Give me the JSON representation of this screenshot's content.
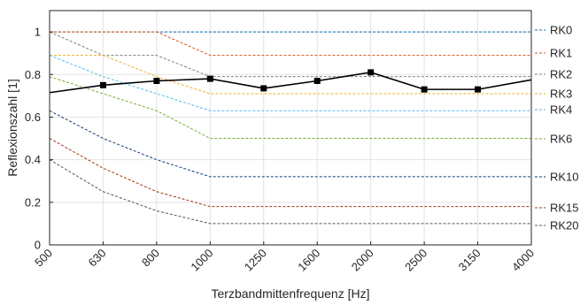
{
  "chart_data": {
    "type": "line",
    "xlabel": "Terzbandmittenfrequenz [Hz]",
    "ylabel": "Reflexionszahl [1]",
    "categories": [
      "500",
      "630",
      "800",
      "1000",
      "1250",
      "1600",
      "2000",
      "2500",
      "3150",
      "4000"
    ],
    "ylim": [
      0,
      1.1
    ],
    "yticks": [
      "0",
      "0.2",
      "0.4",
      "0.6",
      "0.8",
      "1"
    ],
    "grid": true,
    "reference_curves": [
      {
        "name": "RK0",
        "color": "#0072BD",
        "values": [
          1,
          1,
          1,
          1,
          1,
          1,
          1,
          1,
          1,
          1
        ]
      },
      {
        "name": "RK1",
        "color": "#D95319",
        "values": [
          1,
          1,
          1,
          0.89,
          0.89,
          0.89,
          0.89,
          0.89,
          0.89,
          0.89
        ]
      },
      {
        "name": "RK2",
        "color": "#7F7F7F",
        "values": [
          1,
          0.89,
          0.89,
          0.79,
          0.79,
          0.79,
          0.79,
          0.79,
          0.79,
          0.79
        ]
      },
      {
        "name": "RK3",
        "color": "#EDB120",
        "values": [
          0.89,
          0.89,
          0.79,
          0.71,
          0.71,
          0.71,
          0.71,
          0.71,
          0.71,
          0.71
        ]
      },
      {
        "name": "RK4",
        "color": "#4DBEEE",
        "values": [
          0.89,
          0.79,
          0.71,
          0.63,
          0.63,
          0.63,
          0.63,
          0.63,
          0.63,
          0.63
        ]
      },
      {
        "name": "RK6",
        "color": "#77AC30",
        "values": [
          0.79,
          0.71,
          0.63,
          0.5,
          0.5,
          0.5,
          0.5,
          0.5,
          0.5,
          0.5
        ]
      },
      {
        "name": "RK10",
        "color": "#0E3E7A",
        "values": [
          0.63,
          0.5,
          0.4,
          0.32,
          0.32,
          0.32,
          0.32,
          0.32,
          0.32,
          0.32
        ]
      },
      {
        "name": "RK15",
        "color": "#A2340F",
        "values": [
          0.5,
          0.36,
          0.25,
          0.18,
          0.18,
          0.18,
          0.18,
          0.18,
          0.18,
          0.18
        ]
      },
      {
        "name": "RK20",
        "color": "#555555",
        "values": [
          0.4,
          0.25,
          0.16,
          0.1,
          0.1,
          0.1,
          0.1,
          0.1,
          0.1,
          0.1
        ]
      }
    ],
    "measured": {
      "color": "#000000",
      "values": [
        0.715,
        0.75,
        0.77,
        0.78,
        0.735,
        0.77,
        0.81,
        0.73,
        0.73,
        0.775
      ],
      "markers": [
        false,
        true,
        true,
        true,
        true,
        true,
        true,
        true,
        true,
        false
      ]
    }
  }
}
